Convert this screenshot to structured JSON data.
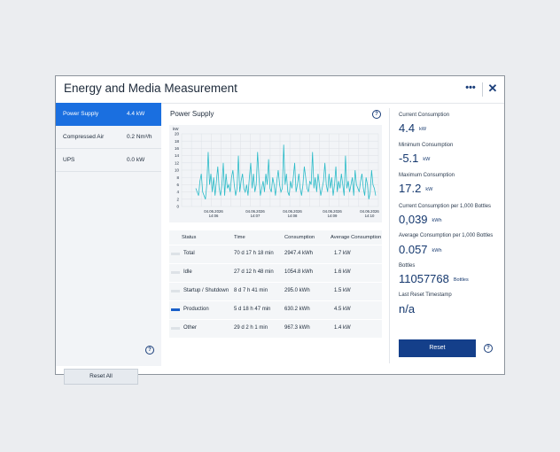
{
  "window": {
    "title": "Energy and Media Measurement",
    "more_icon": "more-dots-icon",
    "close_icon": "close-icon"
  },
  "sidebar": {
    "items": [
      {
        "label": "Power Supply",
        "value": "4.4 kW",
        "active": true
      },
      {
        "label": "Compressed Air",
        "value": "0.2 Nm³/h",
        "active": false
      },
      {
        "label": "UPS",
        "value": "0.0 kW",
        "active": false
      }
    ],
    "reset_all": "Reset All",
    "help": "?"
  },
  "chart": {
    "title": "Power Supply",
    "help": "?",
    "ylabel": "kW",
    "y_ticks": [
      "20",
      "18",
      "16",
      "14",
      "12",
      "10",
      "8",
      "6",
      "4",
      "2",
      "0"
    ],
    "x_ticks": [
      {
        "date": "04.06.2026",
        "time": "14:06"
      },
      {
        "date": "04.06.2026",
        "time": "14:07"
      },
      {
        "date": "04.06.2026",
        "time": "14:08"
      },
      {
        "date": "04.06.2026",
        "time": "14:09"
      },
      {
        "date": "04.06.2026",
        "time": "14:10"
      }
    ],
    "line_color": "#2bbbc8"
  },
  "chart_data": {
    "type": "line",
    "ylabel": "kW",
    "ylim": [
      0,
      20
    ],
    "x_range": [
      "14:05:14",
      "14:10:10"
    ],
    "grid": true,
    "series": [
      {
        "values": [
          5,
          4,
          3,
          7,
          9,
          4,
          3,
          2,
          6,
          15,
          6,
          9,
          4,
          8,
          3,
          7,
          11,
          5,
          3,
          6,
          12,
          3,
          9,
          5,
          6,
          4,
          8,
          10,
          6,
          3,
          5,
          14,
          4,
          7,
          9,
          5,
          4,
          6,
          3,
          8,
          12,
          5,
          9,
          4,
          6,
          15,
          8,
          3,
          5,
          7,
          4,
          9,
          6,
          13,
          5,
          4,
          8,
          6,
          3,
          7,
          10,
          6,
          4,
          5,
          17,
          6,
          9,
          4,
          3,
          7,
          5,
          8,
          12,
          4,
          6,
          9,
          5,
          3,
          6,
          11,
          8,
          5,
          4,
          7,
          6,
          15,
          5,
          8,
          4,
          9,
          6,
          3,
          5,
          7,
          12,
          6,
          4,
          9,
          5,
          8,
          3,
          6,
          11,
          4,
          7,
          5,
          9,
          6,
          3,
          14,
          5,
          7,
          4,
          6,
          8,
          3,
          10,
          6,
          5,
          4,
          7,
          9,
          5,
          3,
          8,
          6,
          2,
          4,
          10,
          6,
          5,
          3
        ]
      }
    ]
  },
  "table": {
    "headers": [
      "Status",
      "Time",
      "Consumption",
      "Average Consumption"
    ],
    "rows": [
      {
        "status": "Total",
        "time": "70 d 17 h 18 min",
        "consumption": "2947.4 kWh",
        "average": "1.7 kW",
        "active": false
      },
      {
        "status": "Idle",
        "time": "27 d 12 h 48 min",
        "consumption": "1054.8 kWh",
        "average": "1.6 kW",
        "active": false
      },
      {
        "status": "Startup / Shutdown",
        "time": "8 d 7 h 41 min",
        "consumption": "295.0 kWh",
        "average": "1.5 kW",
        "active": false
      },
      {
        "status": "Production",
        "time": "5 d 18 h 47 min",
        "consumption": "630.2 kWh",
        "average": "4.5 kW",
        "active": true
      },
      {
        "status": "Other",
        "time": "29 d 2 h 1 min",
        "consumption": "967.3 kWh",
        "average": "1.4 kW",
        "active": false
      }
    ]
  },
  "metrics": [
    {
      "label": "Current Consumption",
      "value": "4.4",
      "unit": "kW"
    },
    {
      "label": "Minimum Consumption",
      "value": "-5.1",
      "unit": "kW"
    },
    {
      "label": "Maximum Consumption",
      "value": "17.2",
      "unit": "kW"
    },
    {
      "label": "Current Consumption per 1,000 Bottles",
      "value": "0,039",
      "unit": "kWh"
    },
    {
      "label": "Average Consumption per 1,000 Bottles",
      "value": "0.057",
      "unit": "kWh"
    },
    {
      "label": "Bottles",
      "value": "11057768",
      "unit": "Bottles"
    },
    {
      "label": "Last Reset Timestamp",
      "value": "n/a",
      "unit": ""
    }
  ],
  "reset_button": "Reset",
  "help": "?"
}
